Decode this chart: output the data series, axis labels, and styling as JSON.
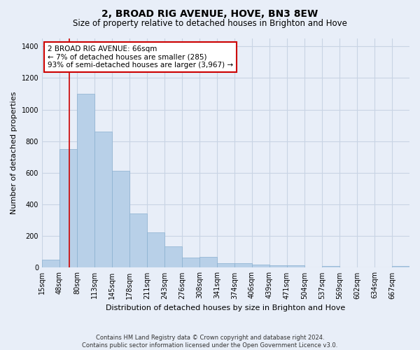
{
  "title": "2, BROAD RIG AVENUE, HOVE, BN3 8EW",
  "subtitle": "Size of property relative to detached houses in Brighton and Hove",
  "xlabel": "Distribution of detached houses by size in Brighton and Hove",
  "ylabel": "Number of detached properties",
  "footer_line1": "Contains HM Land Registry data © Crown copyright and database right 2024.",
  "footer_line2": "Contains public sector information licensed under the Open Government Licence v3.0.",
  "categories": [
    "15sqm",
    "48sqm",
    "80sqm",
    "113sqm",
    "145sqm",
    "178sqm",
    "211sqm",
    "243sqm",
    "276sqm",
    "308sqm",
    "341sqm",
    "374sqm",
    "406sqm",
    "439sqm",
    "471sqm",
    "504sqm",
    "537sqm",
    "569sqm",
    "602sqm",
    "634sqm",
    "667sqm"
  ],
  "values": [
    50,
    750,
    1100,
    860,
    615,
    345,
    225,
    135,
    65,
    70,
    30,
    30,
    20,
    15,
    15,
    0,
    12,
    0,
    0,
    0,
    12
  ],
  "bar_color": "#b8d0e8",
  "bar_edge_color": "#8ab0d0",
  "grid_color": "#c8d4e4",
  "background_color": "#e8eef8",
  "ylim": [
    0,
    1450
  ],
  "yticks": [
    0,
    200,
    400,
    600,
    800,
    1000,
    1200,
    1400
  ],
  "property_line_x": 1.545,
  "annotation_title": "2 BROAD RIG AVENUE: 66sqm",
  "annotation_line2": "← 7% of detached houses are smaller (285)",
  "annotation_line3": "93% of semi-detached houses are larger (3,967) →",
  "annotation_box_color": "#ffffff",
  "annotation_border_color": "#cc0000",
  "vline_color": "#cc0000",
  "title_fontsize": 10,
  "subtitle_fontsize": 8.5,
  "xlabel_fontsize": 8,
  "ylabel_fontsize": 8,
  "tick_fontsize": 7,
  "footer_fontsize": 6
}
